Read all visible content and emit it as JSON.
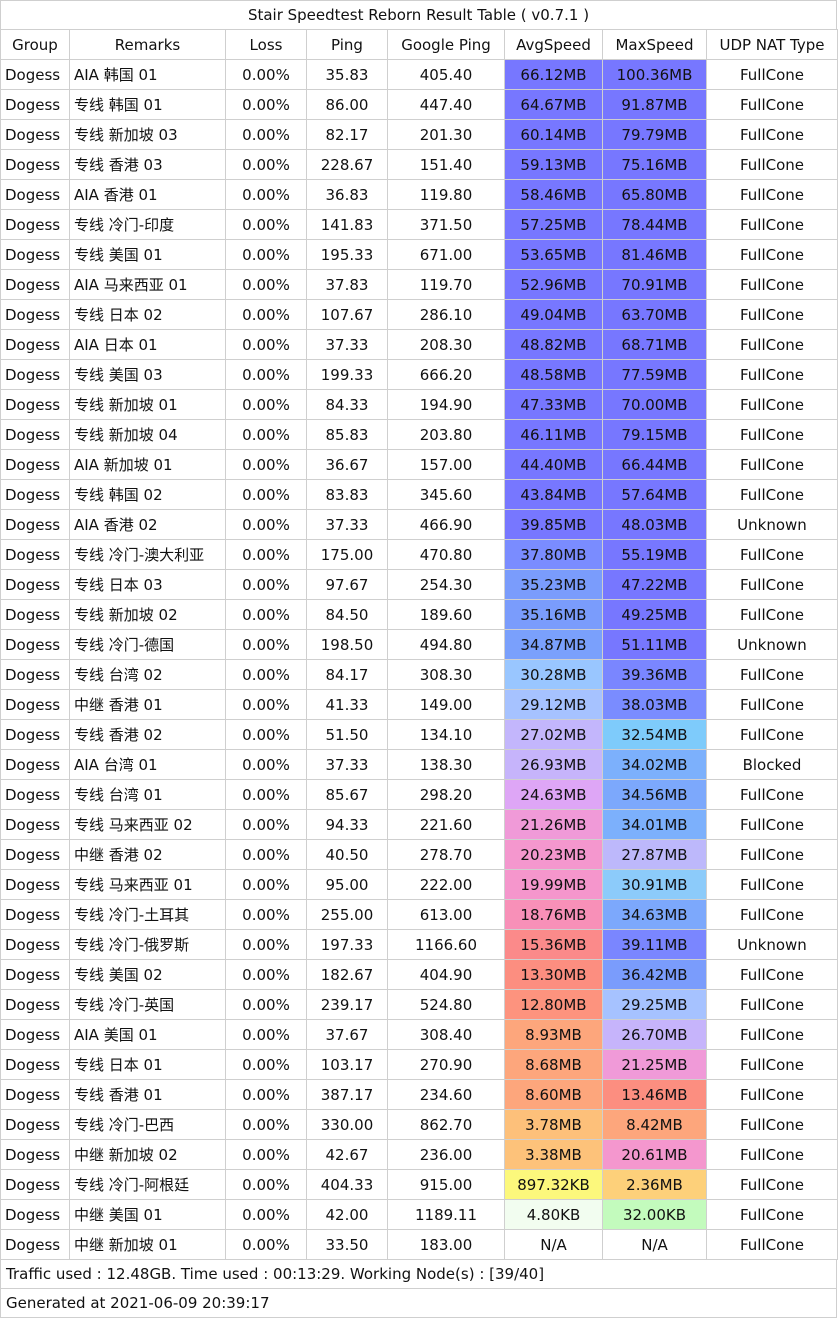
{
  "title": "Stair Speedtest Reborn Result Table ( v0.7.1 )",
  "columns": [
    "Group",
    "Remarks",
    "Loss",
    "Ping",
    "Google Ping",
    "AvgSpeed",
    "MaxSpeed",
    "UDP NAT Type"
  ],
  "rows": [
    {
      "group": "Dogess",
      "remarks": "AIA 韩国 01",
      "loss": "0.00%",
      "ping": "35.83",
      "google_ping": "405.40",
      "avg_speed": "66.12MB",
      "max_speed": "100.36MB",
      "nat": "FullCone",
      "avg_color": "#7777ff",
      "max_color": "#7777ff"
    },
    {
      "group": "Dogess",
      "remarks": "专线 韩国 01",
      "loss": "0.00%",
      "ping": "86.00",
      "google_ping": "447.40",
      "avg_speed": "64.67MB",
      "max_speed": "91.87MB",
      "nat": "FullCone",
      "avg_color": "#7777ff",
      "max_color": "#7777ff"
    },
    {
      "group": "Dogess",
      "remarks": "专线 新加坡 03",
      "loss": "0.00%",
      "ping": "82.17",
      "google_ping": "201.30",
      "avg_speed": "60.14MB",
      "max_speed": "79.79MB",
      "nat": "FullCone",
      "avg_color": "#7777ff",
      "max_color": "#7777ff"
    },
    {
      "group": "Dogess",
      "remarks": "专线 香港 03",
      "loss": "0.00%",
      "ping": "228.67",
      "google_ping": "151.40",
      "avg_speed": "59.13MB",
      "max_speed": "75.16MB",
      "nat": "FullCone",
      "avg_color": "#7777ff",
      "max_color": "#7777ff"
    },
    {
      "group": "Dogess",
      "remarks": "AIA 香港 01",
      "loss": "0.00%",
      "ping": "36.83",
      "google_ping": "119.80",
      "avg_speed": "58.46MB",
      "max_speed": "65.80MB",
      "nat": "FullCone",
      "avg_color": "#7777ff",
      "max_color": "#7777ff"
    },
    {
      "group": "Dogess",
      "remarks": "专线 冷门-印度",
      "loss": "0.00%",
      "ping": "141.83",
      "google_ping": "371.50",
      "avg_speed": "57.25MB",
      "max_speed": "78.44MB",
      "nat": "FullCone",
      "avg_color": "#7777ff",
      "max_color": "#7777ff"
    },
    {
      "group": "Dogess",
      "remarks": "专线 美国 01",
      "loss": "0.00%",
      "ping": "195.33",
      "google_ping": "671.00",
      "avg_speed": "53.65MB",
      "max_speed": "81.46MB",
      "nat": "FullCone",
      "avg_color": "#7777ff",
      "max_color": "#7777ff"
    },
    {
      "group": "Dogess",
      "remarks": "AIA 马来西亚 01",
      "loss": "0.00%",
      "ping": "37.83",
      "google_ping": "119.70",
      "avg_speed": "52.96MB",
      "max_speed": "70.91MB",
      "nat": "FullCone",
      "avg_color": "#7777ff",
      "max_color": "#7777ff"
    },
    {
      "group": "Dogess",
      "remarks": "专线 日本 02",
      "loss": "0.00%",
      "ping": "107.67",
      "google_ping": "286.10",
      "avg_speed": "49.04MB",
      "max_speed": "63.70MB",
      "nat": "FullCone",
      "avg_color": "#7777ff",
      "max_color": "#7777ff"
    },
    {
      "group": "Dogess",
      "remarks": "AIA 日本 01",
      "loss": "0.00%",
      "ping": "37.33",
      "google_ping": "208.30",
      "avg_speed": "48.82MB",
      "max_speed": "68.71MB",
      "nat": "FullCone",
      "avg_color": "#7777ff",
      "max_color": "#7777ff"
    },
    {
      "group": "Dogess",
      "remarks": "专线 美国 03",
      "loss": "0.00%",
      "ping": "199.33",
      "google_ping": "666.20",
      "avg_speed": "48.58MB",
      "max_speed": "77.59MB",
      "nat": "FullCone",
      "avg_color": "#7777ff",
      "max_color": "#7777ff"
    },
    {
      "group": "Dogess",
      "remarks": "专线 新加坡 01",
      "loss": "0.00%",
      "ping": "84.33",
      "google_ping": "194.90",
      "avg_speed": "47.33MB",
      "max_speed": "70.00MB",
      "nat": "FullCone",
      "avg_color": "#7777ff",
      "max_color": "#7777ff"
    },
    {
      "group": "Dogess",
      "remarks": "专线 新加坡 04",
      "loss": "0.00%",
      "ping": "85.83",
      "google_ping": "203.80",
      "avg_speed": "46.11MB",
      "max_speed": "79.15MB",
      "nat": "FullCone",
      "avg_color": "#7777ff",
      "max_color": "#7777ff"
    },
    {
      "group": "Dogess",
      "remarks": "AIA 新加坡 01",
      "loss": "0.00%",
      "ping": "36.67",
      "google_ping": "157.00",
      "avg_speed": "44.40MB",
      "max_speed": "66.44MB",
      "nat": "FullCone",
      "avg_color": "#7777ff",
      "max_color": "#7777ff"
    },
    {
      "group": "Dogess",
      "remarks": "专线 韩国 02",
      "loss": "0.00%",
      "ping": "83.83",
      "google_ping": "345.60",
      "avg_speed": "43.84MB",
      "max_speed": "57.64MB",
      "nat": "FullCone",
      "avg_color": "#7777ff",
      "max_color": "#7777ff"
    },
    {
      "group": "Dogess",
      "remarks": "AIA 香港 02",
      "loss": "0.00%",
      "ping": "37.33",
      "google_ping": "466.90",
      "avg_speed": "39.85MB",
      "max_speed": "48.03MB",
      "nat": "Unknown",
      "avg_color": "#7777ff",
      "max_color": "#7777ff"
    },
    {
      "group": "Dogess",
      "remarks": "专线 冷门-澳大利亚",
      "loss": "0.00%",
      "ping": "175.00",
      "google_ping": "470.80",
      "avg_speed": "37.80MB",
      "max_speed": "55.19MB",
      "nat": "FullCone",
      "avg_color": "#7a8cff",
      "max_color": "#7777ff"
    },
    {
      "group": "Dogess",
      "remarks": "专线 日本 03",
      "loss": "0.00%",
      "ping": "97.67",
      "google_ping": "254.30",
      "avg_speed": "35.23MB",
      "max_speed": "47.22MB",
      "nat": "FullCone",
      "avg_color": "#7a9cfc",
      "max_color": "#7777ff"
    },
    {
      "group": "Dogess",
      "remarks": "专线 新加坡 02",
      "loss": "0.00%",
      "ping": "84.50",
      "google_ping": "189.60",
      "avg_speed": "35.16MB",
      "max_speed": "49.25MB",
      "nat": "FullCone",
      "avg_color": "#7a9cfc",
      "max_color": "#7777ff"
    },
    {
      "group": "Dogess",
      "remarks": "专线 冷门-德国",
      "loss": "0.00%",
      "ping": "198.50",
      "google_ping": "494.80",
      "avg_speed": "34.87MB",
      "max_speed": "51.11MB",
      "nat": "Unknown",
      "avg_color": "#7aa0fc",
      "max_color": "#7777ff"
    },
    {
      "group": "Dogess",
      "remarks": "专线 台湾 02",
      "loss": "0.00%",
      "ping": "84.17",
      "google_ping": "308.30",
      "avg_speed": "30.28MB",
      "max_speed": "39.36MB",
      "nat": "FullCone",
      "avg_color": "#99c6ff",
      "max_color": "#7a86ff"
    },
    {
      "group": "Dogess",
      "remarks": "中继 香港 01",
      "loss": "0.00%",
      "ping": "41.33",
      "google_ping": "149.00",
      "avg_speed": "29.12MB",
      "max_speed": "38.03MB",
      "nat": "FullCone",
      "avg_color": "#a6c2ff",
      "max_color": "#7a8cff"
    },
    {
      "group": "Dogess",
      "remarks": "专线 香港 02",
      "loss": "0.00%",
      "ping": "51.50",
      "google_ping": "134.10",
      "avg_speed": "27.02MB",
      "max_speed": "32.54MB",
      "nat": "FullCone",
      "avg_color": "#c3b6fc",
      "max_color": "#7ecbfb"
    },
    {
      "group": "Dogess",
      "remarks": "AIA 台湾 01",
      "loss": "0.00%",
      "ping": "37.33",
      "google_ping": "138.30",
      "avg_speed": "26.93MB",
      "max_speed": "34.02MB",
      "nat": "Blocked",
      "avg_color": "#c6b4fb",
      "max_color": "#7cb0fc"
    },
    {
      "group": "Dogess",
      "remarks": "专线 台湾 01",
      "loss": "0.00%",
      "ping": "85.67",
      "google_ping": "298.20",
      "avg_speed": "24.63MB",
      "max_speed": "34.56MB",
      "nat": "FullCone",
      "avg_color": "#dea6f6",
      "max_color": "#7ca8fc"
    },
    {
      "group": "Dogess",
      "remarks": "专线 马来西亚 02",
      "loss": "0.00%",
      "ping": "94.33",
      "google_ping": "221.60",
      "avg_speed": "21.26MB",
      "max_speed": "34.01MB",
      "nat": "FullCone",
      "avg_color": "#f09ad8",
      "max_color": "#7cb0fc"
    },
    {
      "group": "Dogess",
      "remarks": "中继 香港 02",
      "loss": "0.00%",
      "ping": "40.50",
      "google_ping": "278.70",
      "avg_speed": "20.23MB",
      "max_speed": "27.87MB",
      "nat": "FullCone",
      "avg_color": "#f497ce",
      "max_color": "#bdb8fb"
    },
    {
      "group": "Dogess",
      "remarks": "专线 马来西亚 01",
      "loss": "0.00%",
      "ping": "95.00",
      "google_ping": "222.00",
      "avg_speed": "19.99MB",
      "max_speed": "30.91MB",
      "nat": "FullCone",
      "avg_color": "#f596cc",
      "max_color": "#8ccbfa"
    },
    {
      "group": "Dogess",
      "remarks": "专线 冷门-土耳其",
      "loss": "0.00%",
      "ping": "255.00",
      "google_ping": "613.00",
      "avg_speed": "18.76MB",
      "max_speed": "34.63MB",
      "nat": "FullCone",
      "avg_color": "#f890b8",
      "max_color": "#7ca8fc"
    },
    {
      "group": "Dogess",
      "remarks": "专线 冷门-俄罗斯",
      "loss": "0.00%",
      "ping": "197.33",
      "google_ping": "1166.60",
      "avg_speed": "15.36MB",
      "max_speed": "39.11MB",
      "nat": "Unknown",
      "avg_color": "#fb8a8a",
      "max_color": "#7a86ff"
    },
    {
      "group": "Dogess",
      "remarks": "专线 美国 02",
      "loss": "0.00%",
      "ping": "182.67",
      "google_ping": "404.90",
      "avg_speed": "13.30MB",
      "max_speed": "36.42MB",
      "nat": "FullCone",
      "avg_color": "#fc8e80",
      "max_color": "#7a9cfc"
    },
    {
      "group": "Dogess",
      "remarks": "专线 冷门-英国",
      "loss": "0.00%",
      "ping": "239.17",
      "google_ping": "524.80",
      "avg_speed": "12.80MB",
      "max_speed": "29.25MB",
      "nat": "FullCone",
      "avg_color": "#fd937e",
      "max_color": "#a6c2ff"
    },
    {
      "group": "Dogess",
      "remarks": "AIA 美国 01",
      "loss": "0.00%",
      "ping": "37.67",
      "google_ping": "308.40",
      "avg_speed": "8.93MB",
      "max_speed": "26.70MB",
      "nat": "FullCone",
      "avg_color": "#fda67c",
      "max_color": "#c6b4fb"
    },
    {
      "group": "Dogess",
      "remarks": "专线 日本 01",
      "loss": "0.00%",
      "ping": "103.17",
      "google_ping": "270.90",
      "avg_speed": "8.68MB",
      "max_speed": "21.25MB",
      "nat": "FullCone",
      "avg_color": "#fda67c",
      "max_color": "#f09ad8"
    },
    {
      "group": "Dogess",
      "remarks": "专线 香港 01",
      "loss": "0.00%",
      "ping": "387.17",
      "google_ping": "234.60",
      "avg_speed": "8.60MB",
      "max_speed": "13.46MB",
      "nat": "FullCone",
      "avg_color": "#fda67c",
      "max_color": "#fc8e80"
    },
    {
      "group": "Dogess",
      "remarks": "专线 冷门-巴西",
      "loss": "0.00%",
      "ping": "330.00",
      "google_ping": "862.70",
      "avg_speed": "3.78MB",
      "max_speed": "8.42MB",
      "nat": "FullCone",
      "avg_color": "#fdc07a",
      "max_color": "#fda67c"
    },
    {
      "group": "Dogess",
      "remarks": "中继 新加坡 02",
      "loss": "0.00%",
      "ping": "42.67",
      "google_ping": "236.00",
      "avg_speed": "3.38MB",
      "max_speed": "20.61MB",
      "nat": "FullCone",
      "avg_color": "#fdc27a",
      "max_color": "#f497ce"
    },
    {
      "group": "Dogess",
      "remarks": "专线 冷门-阿根廷",
      "loss": "0.00%",
      "ping": "404.33",
      "google_ping": "915.00",
      "avg_speed": "897.32KB",
      "max_speed": "2.36MB",
      "nat": "FullCone",
      "avg_color": "#fcf87c",
      "max_color": "#fdd07a"
    },
    {
      "group": "Dogess",
      "remarks": "中继 美国 01",
      "loss": "0.00%",
      "ping": "42.00",
      "google_ping": "1189.11",
      "avg_speed": "4.80KB",
      "max_speed": "32.00KB",
      "nat": "FullCone",
      "avg_color": "#f2fdf0",
      "max_color": "#c3fbbd"
    },
    {
      "group": "Dogess",
      "remarks": "中继 新加坡 01",
      "loss": "0.00%",
      "ping": "33.50",
      "google_ping": "183.00",
      "avg_speed": "N/A",
      "max_speed": "N/A",
      "nat": "FullCone",
      "avg_color": "#ffffff",
      "max_color": "#ffffff"
    }
  ],
  "footer": {
    "traffic": "Traffic used : 12.48GB. Time used : 00:13:29. Working Node(s) : [39/40]",
    "generated": "Generated at 2021-06-09 20:39:17"
  }
}
